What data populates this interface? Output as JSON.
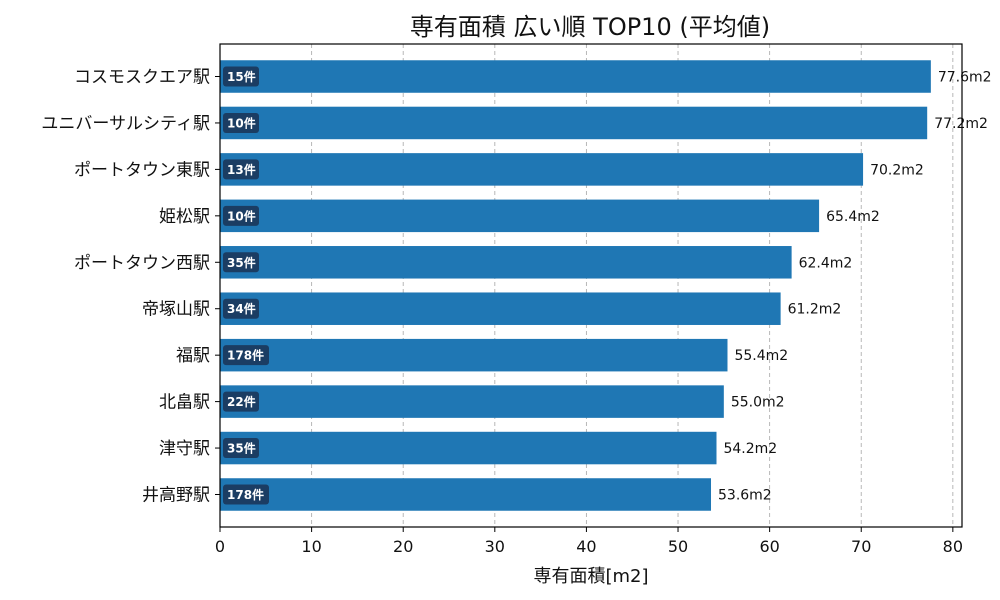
{
  "chart_data": {
    "type": "bar",
    "orientation": "horizontal",
    "title": "専有面積 広い順 TOP10 (平均値)",
    "xlabel": "専有面積[m2]",
    "ylabel": "",
    "xlim": [
      0,
      81
    ],
    "xticks": [
      0,
      10,
      20,
      30,
      40,
      50,
      60,
      70,
      80
    ],
    "grid": "vertical dashed",
    "legend": "none",
    "value_suffix": "m2",
    "categories": [
      "コスモスクエア駅",
      "ユニバーサルシティ駅",
      "ポートタウン東駅",
      "姫松駅",
      "ポートタウン西駅",
      "帝塚山駅",
      "福駅",
      "北畠駅",
      "津守駅",
      "井高野駅"
    ],
    "values": [
      77.6,
      77.2,
      70.2,
      65.4,
      62.4,
      61.2,
      55.4,
      55.0,
      54.2,
      53.6
    ],
    "value_labels": [
      "77.6m2",
      "77.2m2",
      "70.2m2",
      "65.4m2",
      "62.4m2",
      "61.2m2",
      "55.4m2",
      "55.0m2",
      "54.2m2",
      "53.6m2"
    ],
    "count_labels": [
      "15件",
      "10件",
      "13件",
      "10件",
      "35件",
      "34件",
      "178件",
      "22件",
      "35件",
      "178件"
    ],
    "colors": {
      "bar": "#1f77b4",
      "badge": "#1b3d63",
      "grid": "#b0b0b0",
      "axis": "#000000"
    }
  }
}
